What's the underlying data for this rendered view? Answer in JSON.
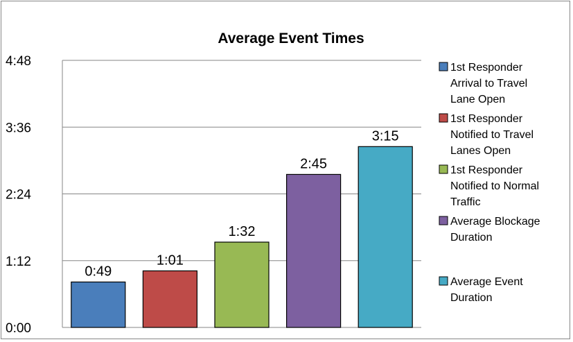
{
  "chart_data": {
    "type": "bar",
    "title": "Average Event Times",
    "xlabel": "",
    "ylabel": "",
    "categories": [
      "1st Responder Arrival to Travel Lane Open",
      "1st Responder Notified to Travel Lanes Open",
      "1st Responder Notified to Normal Traffic",
      "Average Blockage Duration",
      "Average Event Duration"
    ],
    "values": [
      49,
      61,
      92,
      165,
      195
    ],
    "value_labels": [
      "0:49",
      "1:01",
      "1:32",
      "2:45",
      "3:15"
    ],
    "colors": [
      "#4a7ebb",
      "#be4b48",
      "#98b954",
      "#7d60a0",
      "#46aac5"
    ],
    "ylim": [
      0,
      288
    ],
    "yticks": [
      0,
      72,
      144,
      216,
      288
    ],
    "ytick_labels": [
      "0:00",
      "1:12",
      "2:24",
      "3:36",
      "4:48"
    ],
    "grid": true,
    "legend_position": "right",
    "legend": [
      [
        "1st Responder",
        "Arrival to Travel",
        "Lane Open"
      ],
      [
        "1st Responder",
        "Notified to Travel",
        "Lanes Open"
      ],
      [
        "1st Responder",
        "Notified to Normal",
        "Traffic"
      ],
      [
        "Average Blockage",
        "Duration"
      ],
      [
        "Average Event",
        "Duration"
      ]
    ]
  }
}
